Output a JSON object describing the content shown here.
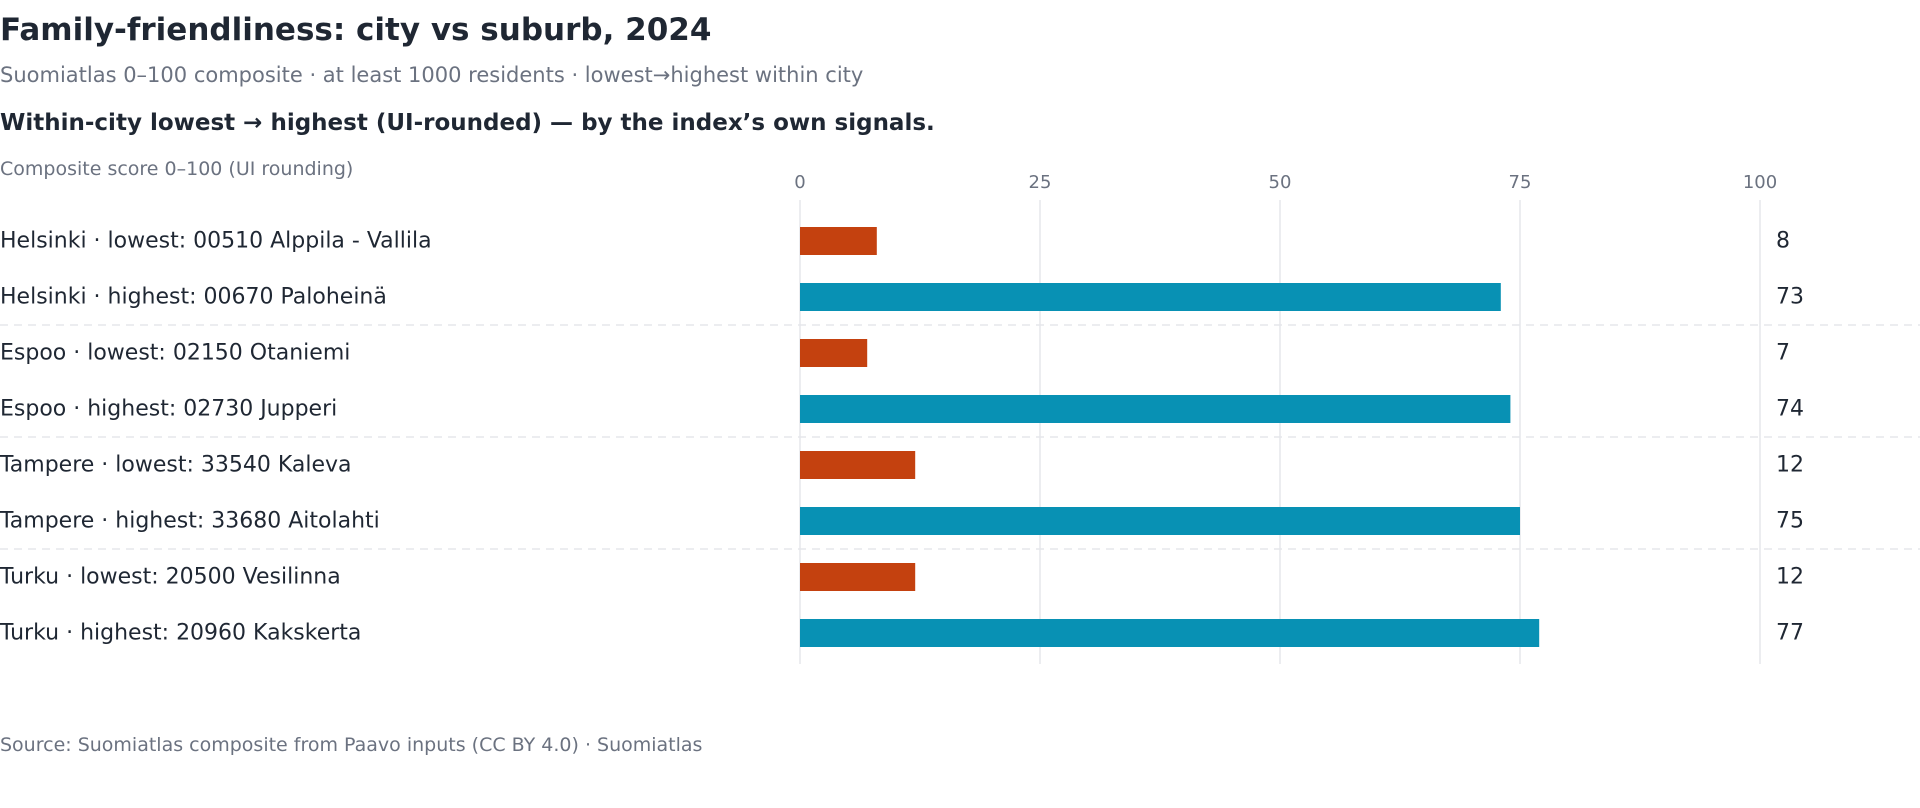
{
  "header": {
    "title": "Family-friendliness: city vs suburb, 2024",
    "subtitle": "Suomiatlas 0–100 composite · at least 1000 residents · lowest→highest within city",
    "lede": "Within-city lowest → highest (UI-rounded) — by the index’s own signals."
  },
  "footer": {
    "source": "Source: Suomiatlas composite from Paavo inputs (CC BY 4.0) · Suomiatlas"
  },
  "colors": {
    "lowest": "#c4410f",
    "highest": "#0891b4",
    "grid": "#e5e7eb",
    "label": "#1f2733",
    "muted": "#6b7280"
  },
  "chart_data": {
    "type": "bar",
    "orientation": "horizontal",
    "title": "Family-friendliness: city vs suburb, 2024",
    "subtitle": "Suomiatlas 0–100 composite · at least 1000 residents · lowest→highest within city",
    "axis_label": "Composite score 0–100 (UI rounding)",
    "xlim": [
      0,
      100
    ],
    "ticks": [
      0,
      25,
      50,
      75,
      100
    ],
    "grid": true,
    "value_labels": true,
    "categories": [
      "Helsinki · lowest: 00510 Alppila - Vallila",
      "Helsinki · highest: 00670 Paloheinä",
      "Espoo · lowest: 02150 Otaniemi",
      "Espoo · highest: 02730 Jupperi",
      "Tampere · lowest: 33540 Kaleva",
      "Tampere · highest: 33680 Aitolahti",
      "Turku · lowest: 20500 Vesilinna",
      "Turku · highest: 20960 Kakskerta"
    ],
    "values": [
      8,
      73,
      7,
      74,
      12,
      75,
      12,
      77
    ],
    "kinds": [
      "lowest",
      "highest",
      "lowest",
      "highest",
      "lowest",
      "highest",
      "lowest",
      "highest"
    ],
    "value_texts": [
      "8",
      "73",
      "7",
      "74",
      "12",
      "75",
      "12",
      "77"
    ],
    "tick_texts": [
      "0",
      "25",
      "50",
      "75",
      "100"
    ]
  }
}
